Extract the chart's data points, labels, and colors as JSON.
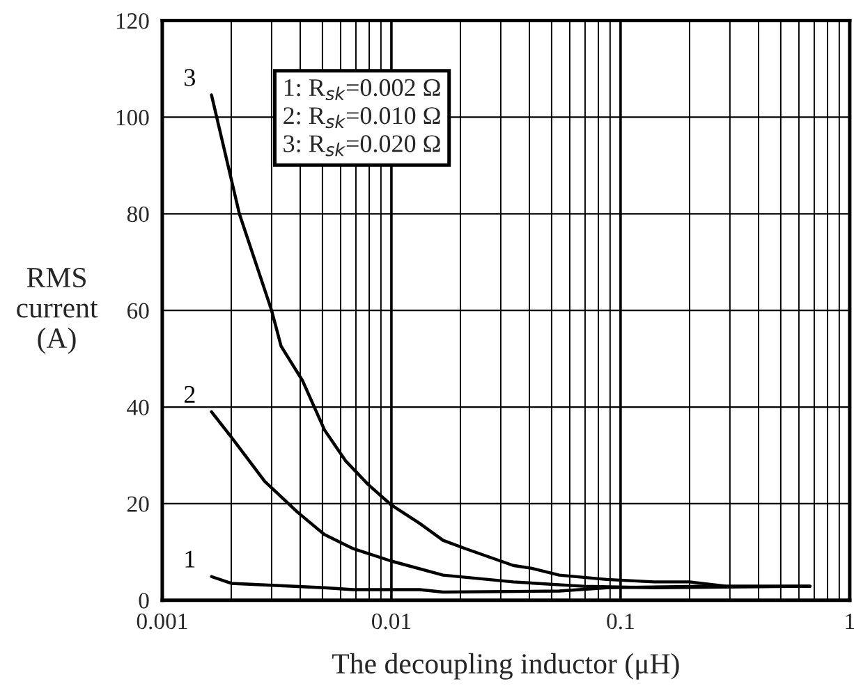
{
  "chart_data": {
    "type": "line",
    "xlabel": "The decoupling inductor (μH)",
    "ylabel": "RMS\ncurrent\n(A)",
    "log": "x",
    "xlim": [
      0.001,
      1
    ],
    "xticks": [
      0.001,
      0.01,
      0.1,
      1
    ],
    "ylim": [
      0,
      120
    ],
    "yticks": [
      0,
      20,
      40,
      60,
      80,
      100,
      120
    ],
    "grid": true,
    "legend": false,
    "marker": "none",
    "line_style": "solid",
    "annotations": [
      "1: R$_{sk}$=0.002 Ω\n2: R$_{sk}$=0.010 Ω\n3: R$_{sk}$=0.020 Ω"
    ],
    "series": [
      {
        "name": "1",
        "color": "#000000",
        "x": [
          0.00164,
          0.002,
          0.0027,
          0.0051,
          0.0068,
          0.0133,
          0.0168,
          0.054,
          0.087,
          0.22,
          0.67
        ],
        "values": [
          4.9,
          3.5,
          3.2,
          2.6,
          2.2,
          2.2,
          1.7,
          1.9,
          2.6,
          2.9,
          2.9
        ]
      },
      {
        "name": "2",
        "color": "#000000",
        "x": [
          0.00164,
          0.002,
          0.0028,
          0.0039,
          0.0051,
          0.0068,
          0.01,
          0.0168,
          0.034,
          0.069,
          0.14,
          0.67
        ],
        "values": [
          39,
          33.8,
          24.6,
          18.2,
          13.6,
          10.7,
          8.1,
          5.2,
          3.8,
          2.9,
          2.6,
          2.9
        ]
      },
      {
        "name": "3",
        "color": "#000000",
        "x": [
          0.00164,
          0.00217,
          0.003,
          0.0033,
          0.0041,
          0.0051,
          0.0063,
          0.0079,
          0.01,
          0.0133,
          0.0168,
          0.021,
          0.034,
          0.041,
          0.054,
          0.087,
          0.14,
          0.2,
          0.29,
          0.67
        ],
        "values": [
          104.6,
          80,
          60,
          52.6,
          45.4,
          35.3,
          28.9,
          24,
          19.7,
          15.9,
          12.4,
          10.7,
          7.2,
          6.6,
          5.2,
          4.3,
          3.8,
          3.8,
          2.9,
          2.9
        ]
      }
    ]
  }
}
